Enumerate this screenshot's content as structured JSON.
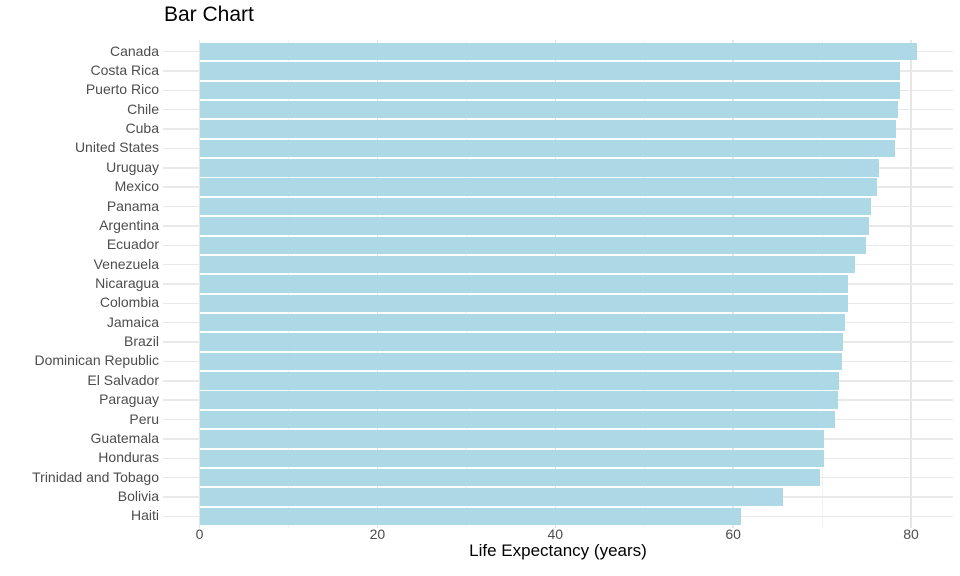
{
  "chart_data": {
    "type": "bar",
    "orientation": "horizontal",
    "title": "Bar Chart",
    "xlabel": "Life Expectancy (years)",
    "ylabel": "",
    "categories": [
      "Canada",
      "Costa Rica",
      "Puerto Rico",
      "Chile",
      "Cuba",
      "United States",
      "Uruguay",
      "Mexico",
      "Panama",
      "Argentina",
      "Ecuador",
      "Venezuela",
      "Nicaragua",
      "Colombia",
      "Jamaica",
      "Brazil",
      "Dominican Republic",
      "El Salvador",
      "Paraguay",
      "Peru",
      "Guatemala",
      "Honduras",
      "Trinidad and Tobago",
      "Bolivia",
      "Haiti"
    ],
    "values": [
      80.653,
      78.782,
      78.746,
      78.553,
      78.273,
      78.242,
      76.384,
      76.195,
      75.537,
      75.32,
      74.994,
      73.747,
      72.899,
      72.889,
      72.567,
      72.39,
      72.235,
      71.878,
      71.752,
      71.421,
      70.259,
      70.198,
      69.819,
      65.554,
      60.916
    ],
    "xticks": [
      0,
      20,
      40,
      60,
      80
    ],
    "xticks_minor": [
      10,
      30,
      50,
      70
    ],
    "xlim": [
      -4.03,
      84.69
    ],
    "grid": "major+minor, light gray on white",
    "legend": "none",
    "bar_color": "#ADD8E6",
    "grid_major_color": "#e6e6e6",
    "grid_minor_color": "#f2f2f2",
    "axis_text_color": "#4d4d4d",
    "title_color": "#000000"
  }
}
